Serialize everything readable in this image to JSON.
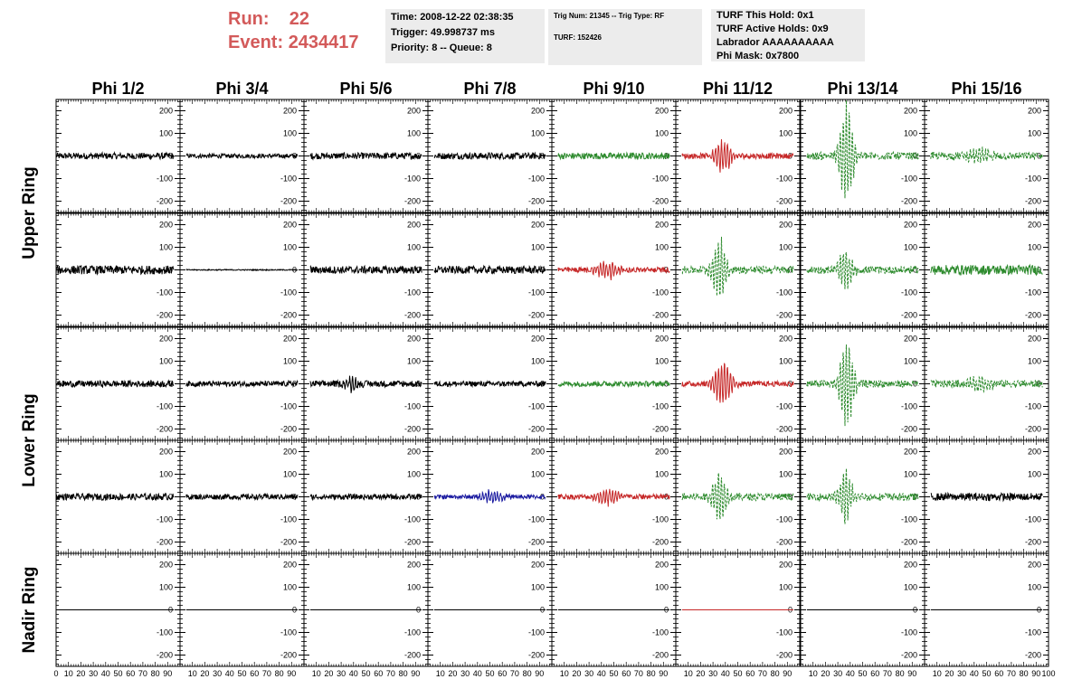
{
  "header": {
    "run_label": "Run:",
    "run_value": "22",
    "event_label": "Event:",
    "event_value": "2434417",
    "run_color": "#d35a5a"
  },
  "info_boxes": {
    "time": "Time: 2008-12-22 02:38:35",
    "trigger": "Trigger: 49.998737 ms",
    "priority": "Priority: 8 -- Queue: 8",
    "trig_num": "Trig Num: 21345 -- Trig Type: RF",
    "turf": "TURF: 152426",
    "turf_hold": "TURF This Hold: 0x1",
    "turf_active": "TURF Active Holds: 0x9",
    "labrador": "Labrador AAAAAAAAAA",
    "phi_mask": "Phi Mask: 0x7800"
  },
  "chart_data": {
    "type": "line",
    "columns": [
      "Phi 1/2",
      "Phi 3/4",
      "Phi 5/6",
      "Phi 7/8",
      "Phi 9/10",
      "Phi 11/12",
      "Phi 13/14",
      "Phi 15/16"
    ],
    "ring_labels": [
      "Upper Ring",
      "Lower Ring",
      "Nadir Ring"
    ],
    "rows": 5,
    "ylim": [
      -250,
      250
    ],
    "yticks": [
      -200,
      -100,
      0,
      100,
      200
    ],
    "xlim": [
      0,
      100
    ],
    "xticks": [
      0,
      10,
      20,
      30,
      40,
      50,
      60,
      70,
      80,
      90,
      100
    ],
    "colors": {
      "black": "#000000",
      "green": "#2e8b2e",
      "red": "#c62828",
      "blue": "#1a1aa0"
    },
    "panels": [
      [
        {
          "c": "black",
          "a": 12,
          "p": 0,
          "w": 0,
          "s": "solid"
        },
        {
          "c": "black",
          "a": 8,
          "p": 0,
          "w": 0,
          "s": "solid"
        },
        {
          "c": "black",
          "a": 12,
          "p": 0,
          "w": 0,
          "s": "solid"
        },
        {
          "c": "black",
          "a": 12,
          "p": 0,
          "w": 0,
          "s": "solid"
        },
        {
          "c": "green",
          "a": 12,
          "p": 0,
          "w": 0,
          "s": "solid"
        },
        {
          "c": "red",
          "a": 10,
          "p": 75,
          "w": 8,
          "t": 38,
          "s": "solid"
        },
        {
          "c": "green",
          "a": 14,
          "p": 240,
          "w": 6,
          "t": 37,
          "s": "dash"
        },
        {
          "c": "green",
          "a": 14,
          "p": 35,
          "w": 10,
          "t": 45,
          "s": "dash"
        }
      ],
      [
        {
          "c": "black",
          "a": 16,
          "p": 0,
          "w": 0,
          "s": "solid"
        },
        {
          "c": "black",
          "a": 2,
          "p": 0,
          "w": 0,
          "s": "solid"
        },
        {
          "c": "black",
          "a": 14,
          "p": 0,
          "w": 0,
          "s": "solid"
        },
        {
          "c": "black",
          "a": 14,
          "p": 0,
          "w": 0,
          "s": "solid"
        },
        {
          "c": "red",
          "a": 10,
          "p": 40,
          "w": 10,
          "t": 45,
          "s": "solid"
        },
        {
          "c": "green",
          "a": 14,
          "p": 150,
          "w": 6,
          "t": 35,
          "s": "dash"
        },
        {
          "c": "green",
          "a": 14,
          "p": 110,
          "w": 6,
          "t": 36,
          "s": "dash"
        },
        {
          "c": "green",
          "a": 18,
          "p": 0,
          "w": 0,
          "s": "solid"
        }
      ],
      [
        {
          "c": "black",
          "a": 12,
          "p": 0,
          "w": 0,
          "s": "solid"
        },
        {
          "c": "black",
          "a": 10,
          "p": 0,
          "w": 0,
          "s": "solid"
        },
        {
          "c": "black",
          "a": 12,
          "p": 30,
          "w": 6,
          "t": 38,
          "s": "solid"
        },
        {
          "c": "black",
          "a": 10,
          "p": 0,
          "w": 0,
          "s": "solid"
        },
        {
          "c": "green",
          "a": 10,
          "p": 0,
          "w": 0,
          "s": "solid"
        },
        {
          "c": "red",
          "a": 10,
          "p": 105,
          "w": 8,
          "t": 38,
          "s": "solid"
        },
        {
          "c": "green",
          "a": 14,
          "p": 210,
          "w": 6,
          "t": 37,
          "s": "dash"
        },
        {
          "c": "green",
          "a": 14,
          "p": 35,
          "w": 10,
          "t": 45,
          "s": "dash"
        }
      ],
      [
        {
          "c": "black",
          "a": 12,
          "p": 0,
          "w": 0,
          "s": "solid"
        },
        {
          "c": "black",
          "a": 10,
          "p": 0,
          "w": 0,
          "s": "solid"
        },
        {
          "c": "black",
          "a": 10,
          "p": 0,
          "w": 0,
          "s": "solid"
        },
        {
          "c": "blue",
          "a": 8,
          "p": 30,
          "w": 10,
          "t": 52,
          "s": "solid"
        },
        {
          "c": "red",
          "a": 10,
          "p": 40,
          "w": 10,
          "t": 45,
          "s": "solid"
        },
        {
          "c": "green",
          "a": 14,
          "p": 120,
          "w": 6,
          "t": 35,
          "s": "dash"
        },
        {
          "c": "green",
          "a": 14,
          "p": 120,
          "w": 6,
          "t": 36,
          "s": "dash"
        },
        {
          "c": "black",
          "a": 14,
          "p": 0,
          "w": 0,
          "s": "solid"
        }
      ],
      [
        {
          "c": "black",
          "a": 0,
          "p": 0,
          "w": 0,
          "s": "flat"
        },
        {
          "c": "black",
          "a": 0,
          "p": 0,
          "w": 0,
          "s": "flat"
        },
        {
          "c": "black",
          "a": 0,
          "p": 0,
          "w": 0,
          "s": "flat"
        },
        {
          "c": "black",
          "a": 0,
          "p": 0,
          "w": 0,
          "s": "flat"
        },
        {
          "c": "black",
          "a": 0,
          "p": 0,
          "w": 0,
          "s": "flat"
        },
        {
          "c": "red",
          "a": 0,
          "p": 0,
          "w": 0,
          "s": "flat"
        },
        {
          "c": "black",
          "a": 0,
          "p": 0,
          "w": 0,
          "s": "flat"
        },
        {
          "c": "black",
          "a": 0,
          "p": 0,
          "w": 0,
          "s": "flat"
        }
      ]
    ]
  }
}
